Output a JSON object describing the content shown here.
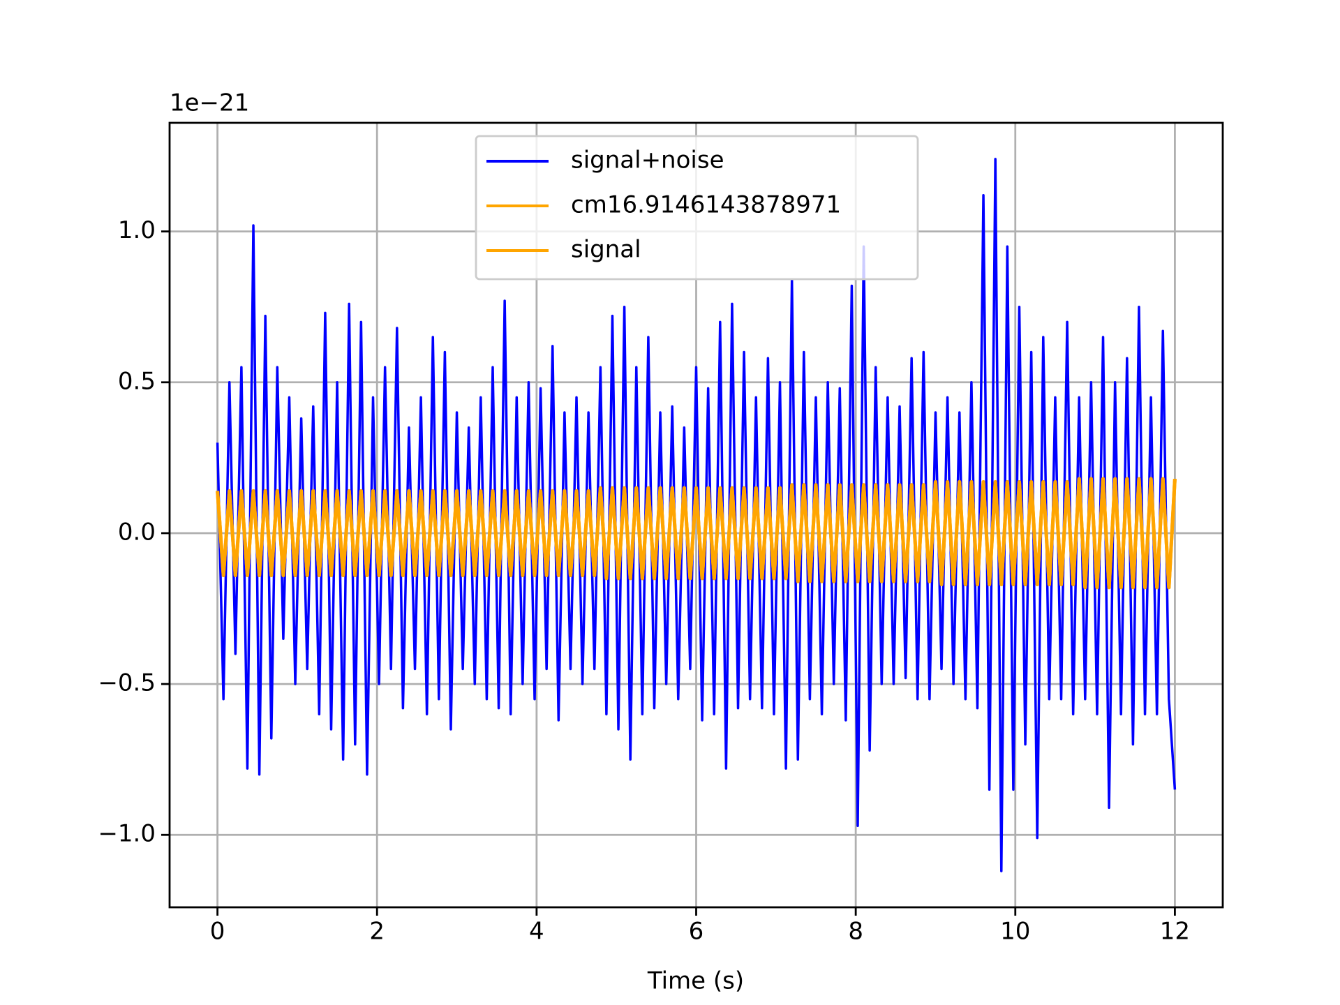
{
  "chart_data": {
    "type": "line",
    "x_label": "Time (s)",
    "y_offset_label": "1e−21",
    "x": [
      0,
      0.075,
      0.15,
      0.225,
      0.3,
      0.375,
      0.45,
      0.525,
      0.6,
      0.675,
      0.75,
      0.825,
      0.9,
      0.975,
      1.05,
      1.125,
      1.2,
      1.275,
      1.35,
      1.425,
      1.5,
      1.575,
      1.65,
      1.725,
      1.8,
      1.875,
      1.95,
      2.025,
      2.1,
      2.175,
      2.25,
      2.325,
      2.4,
      2.475,
      2.55,
      2.625,
      2.7,
      2.775,
      2.85,
      2.925,
      3,
      3.075,
      3.15,
      3.225,
      3.3,
      3.375,
      3.45,
      3.525,
      3.6,
      3.675,
      3.75,
      3.825,
      3.9,
      3.975,
      4.05,
      4.125,
      4.2,
      4.275,
      4.35,
      4.425,
      4.5,
      4.575,
      4.65,
      4.725,
      4.8,
      4.875,
      4.95,
      5.025,
      5.1,
      5.175,
      5.25,
      5.325,
      5.4,
      5.475,
      5.55,
      5.625,
      5.7,
      5.775,
      5.85,
      5.925,
      6,
      6.075,
      6.15,
      6.225,
      6.3,
      6.375,
      6.45,
      6.525,
      6.6,
      6.675,
      6.75,
      6.825,
      6.9,
      6.975,
      7.05,
      7.125,
      7.2,
      7.275,
      7.35,
      7.425,
      7.5,
      7.575,
      7.65,
      7.725,
      7.8,
      7.875,
      7.95,
      8.025,
      8.1,
      8.175,
      8.25,
      8.325,
      8.4,
      8.475,
      8.55,
      8.625,
      8.7,
      8.775,
      8.85,
      8.925,
      9,
      9.075,
      9.15,
      9.225,
      9.3,
      9.375,
      9.45,
      9.525,
      9.6,
      9.675,
      9.75,
      9.825,
      9.9,
      9.975,
      10.05,
      10.125,
      10.2,
      10.275,
      10.35,
      10.425,
      10.5,
      10.575,
      10.65,
      10.725,
      10.8,
      10.875,
      10.95,
      11.025,
      11.1,
      11.175,
      11.25,
      11.325,
      11.4,
      11.475,
      11.55,
      11.625,
      11.7,
      11.775,
      11.85,
      11.925,
      12
    ],
    "series": [
      {
        "name": "signal+noise",
        "color": "#0000ff",
        "width": 3.5,
        "values": [
          0.3,
          -0.55,
          0.5,
          -0.4,
          0.55,
          -0.78,
          1.02,
          -0.8,
          0.72,
          -0.68,
          0.55,
          -0.35,
          0.45,
          -0.5,
          0.38,
          -0.45,
          0.42,
          -0.6,
          0.73,
          -0.65,
          0.5,
          -0.75,
          0.76,
          -0.7,
          0.7,
          -0.8,
          0.45,
          -0.5,
          0.55,
          -0.45,
          0.68,
          -0.58,
          0.35,
          -0.45,
          0.45,
          -0.6,
          0.65,
          -0.55,
          0.6,
          -0.65,
          0.4,
          -0.45,
          0.35,
          -0.5,
          0.45,
          -0.55,
          0.55,
          -0.58,
          0.77,
          -0.6,
          0.45,
          -0.5,
          0.5,
          -0.55,
          0.48,
          -0.45,
          0.62,
          -0.62,
          0.4,
          -0.45,
          0.45,
          -0.5,
          0.4,
          -0.45,
          0.55,
          -0.6,
          0.72,
          -0.65,
          0.75,
          -0.75,
          0.55,
          -0.6,
          0.65,
          -0.58,
          0.4,
          -0.5,
          0.42,
          -0.55,
          0.35,
          -0.45,
          0.55,
          -0.62,
          0.48,
          -0.6,
          0.7,
          -0.78,
          0.76,
          -0.58,
          0.6,
          -0.55,
          0.45,
          -0.58,
          0.58,
          -0.6,
          0.5,
          -0.78,
          0.84,
          -0.75,
          0.6,
          -0.55,
          0.45,
          -0.6,
          0.5,
          -0.5,
          0.48,
          -0.62,
          0.82,
          -0.97,
          0.95,
          -0.72,
          0.55,
          -0.5,
          0.45,
          -0.5,
          0.42,
          -0.48,
          0.58,
          -0.55,
          0.6,
          -0.55,
          0.4,
          -0.45,
          0.45,
          -0.5,
          0.4,
          -0.55,
          0.5,
          -0.58,
          1.12,
          -0.85,
          1.24,
          -1.12,
          0.95,
          -0.85,
          0.75,
          -0.7,
          0.6,
          -1.01,
          0.65,
          -0.55,
          0.45,
          -0.55,
          0.7,
          -0.6,
          0.45,
          -0.55,
          0.5,
          -0.6,
          0.65,
          -0.91,
          0.5,
          -0.6,
          0.58,
          -0.7,
          0.75,
          -0.6,
          0.45,
          -0.6,
          0.67,
          -0.55,
          -0.85
        ]
      },
      {
        "name": "cm16.9146143878971",
        "color": "#ffa500",
        "width": 5,
        "values": [
          0.14,
          -0.14,
          0.14,
          -0.14,
          0.14,
          -0.14,
          0.14,
          -0.14,
          0.14,
          -0.14,
          0.14,
          -0.14,
          0.14,
          -0.14,
          0.14,
          -0.14,
          0.14,
          -0.14,
          0.14,
          -0.14,
          0.14,
          -0.14,
          0.14,
          -0.14,
          0.14,
          -0.14,
          0.14,
          -0.14,
          0.14,
          -0.14,
          0.14,
          -0.14,
          0.14,
          -0.14,
          0.14,
          -0.14,
          0.14,
          -0.14,
          0.14,
          -0.14,
          0.14,
          -0.14,
          0.14,
          -0.14,
          0.14,
          -0.14,
          0.14,
          -0.14,
          0.14,
          -0.14,
          0.14,
          -0.14,
          0.14,
          -0.14,
          0.14,
          -0.14,
          0.14,
          -0.14,
          0.14,
          -0.14,
          0.14,
          -0.14,
          0.14,
          -0.14,
          0.15,
          -0.15,
          0.15,
          -0.15,
          0.15,
          -0.15,
          0.15,
          -0.15,
          0.15,
          -0.15,
          0.15,
          -0.15,
          0.15,
          -0.15,
          0.15,
          -0.15,
          0.15,
          -0.15,
          0.15,
          -0.15,
          0.15,
          -0.15,
          0.15,
          -0.15,
          0.15,
          -0.15,
          0.15,
          -0.15,
          0.15,
          -0.15,
          0.15,
          -0.15,
          0.16,
          -0.16,
          0.16,
          -0.16,
          0.16,
          -0.16,
          0.16,
          -0.16,
          0.16,
          -0.16,
          0.16,
          -0.16,
          0.16,
          -0.16,
          0.16,
          -0.16,
          0.16,
          -0.16,
          0.16,
          -0.16,
          0.16,
          -0.16,
          0.16,
          -0.16,
          0.17,
          -0.17,
          0.17,
          -0.17,
          0.17,
          -0.17,
          0.17,
          -0.17,
          0.17,
          -0.17,
          0.17,
          -0.17,
          0.17,
          -0.17,
          0.17,
          -0.17,
          0.17,
          -0.17,
          0.17,
          -0.17,
          0.17,
          -0.17,
          0.17,
          -0.17,
          0.18,
          -0.18,
          0.18,
          -0.18,
          0.18,
          -0.18,
          0.18,
          -0.18,
          0.18,
          -0.18,
          0.18,
          -0.18,
          0.18,
          -0.18,
          0.18,
          -0.18,
          0.18
        ]
      },
      {
        "name": "signal",
        "color": "#ffa500",
        "width": 5,
        "values": [
          0.14,
          -0.14,
          0.14,
          -0.14,
          0.14,
          -0.14,
          0.14,
          -0.14,
          0.14,
          -0.14,
          0.14,
          -0.14,
          0.14,
          -0.14,
          0.14,
          -0.14,
          0.14,
          -0.14,
          0.14,
          -0.14,
          0.14,
          -0.14,
          0.14,
          -0.14,
          0.14,
          -0.14,
          0.14,
          -0.14,
          0.14,
          -0.14,
          0.14,
          -0.14,
          0.14,
          -0.14,
          0.14,
          -0.14,
          0.14,
          -0.14,
          0.14,
          -0.14,
          0.14,
          -0.14,
          0.14,
          -0.14,
          0.14,
          -0.14,
          0.14,
          -0.14,
          0.14,
          -0.14,
          0.14,
          -0.14,
          0.14,
          -0.14,
          0.14,
          -0.14,
          0.14,
          -0.14,
          0.14,
          -0.14,
          0.14,
          -0.14,
          0.14,
          -0.14,
          0.15,
          -0.15,
          0.15,
          -0.15,
          0.15,
          -0.15,
          0.15,
          -0.15,
          0.15,
          -0.15,
          0.15,
          -0.15,
          0.15,
          -0.15,
          0.15,
          -0.15,
          0.15,
          -0.15,
          0.15,
          -0.15,
          0.15,
          -0.15,
          0.15,
          -0.15,
          0.15,
          -0.15,
          0.15,
          -0.15,
          0.15,
          -0.15,
          0.15,
          -0.15,
          0.16,
          -0.16,
          0.16,
          -0.16,
          0.16,
          -0.16,
          0.16,
          -0.16,
          0.16,
          -0.16,
          0.16,
          -0.16,
          0.16,
          -0.16,
          0.16,
          -0.16,
          0.16,
          -0.16,
          0.16,
          -0.16,
          0.16,
          -0.16,
          0.16,
          -0.16,
          0.17,
          -0.17,
          0.17,
          -0.17,
          0.17,
          -0.17,
          0.17,
          -0.17,
          0.17,
          -0.17,
          0.17,
          -0.17,
          0.17,
          -0.17,
          0.17,
          -0.17,
          0.17,
          -0.17,
          0.17,
          -0.17,
          0.17,
          -0.17,
          0.17,
          -0.17,
          0.18,
          -0.18,
          0.18,
          -0.18,
          0.18,
          -0.18,
          0.18,
          -0.18,
          0.18,
          -0.18,
          0.18,
          -0.18,
          0.18,
          -0.18,
          0.18,
          -0.18,
          0.18
        ]
      }
    ],
    "xlim": [
      -0.6,
      12.6
    ],
    "ylim": [
      -1.24,
      1.36
    ],
    "xticks": [
      0,
      2,
      4,
      6,
      8,
      10,
      12
    ],
    "yticks": [
      {
        "value": -1.0,
        "label": "−1.0"
      },
      {
        "value": -0.5,
        "label": "−0.5"
      },
      {
        "value": 0.0,
        "label": "0.0"
      },
      {
        "value": 0.5,
        "label": "0.5"
      },
      {
        "value": 1.0,
        "label": "1.0"
      }
    ],
    "grid": true,
    "legend": "upper center"
  }
}
